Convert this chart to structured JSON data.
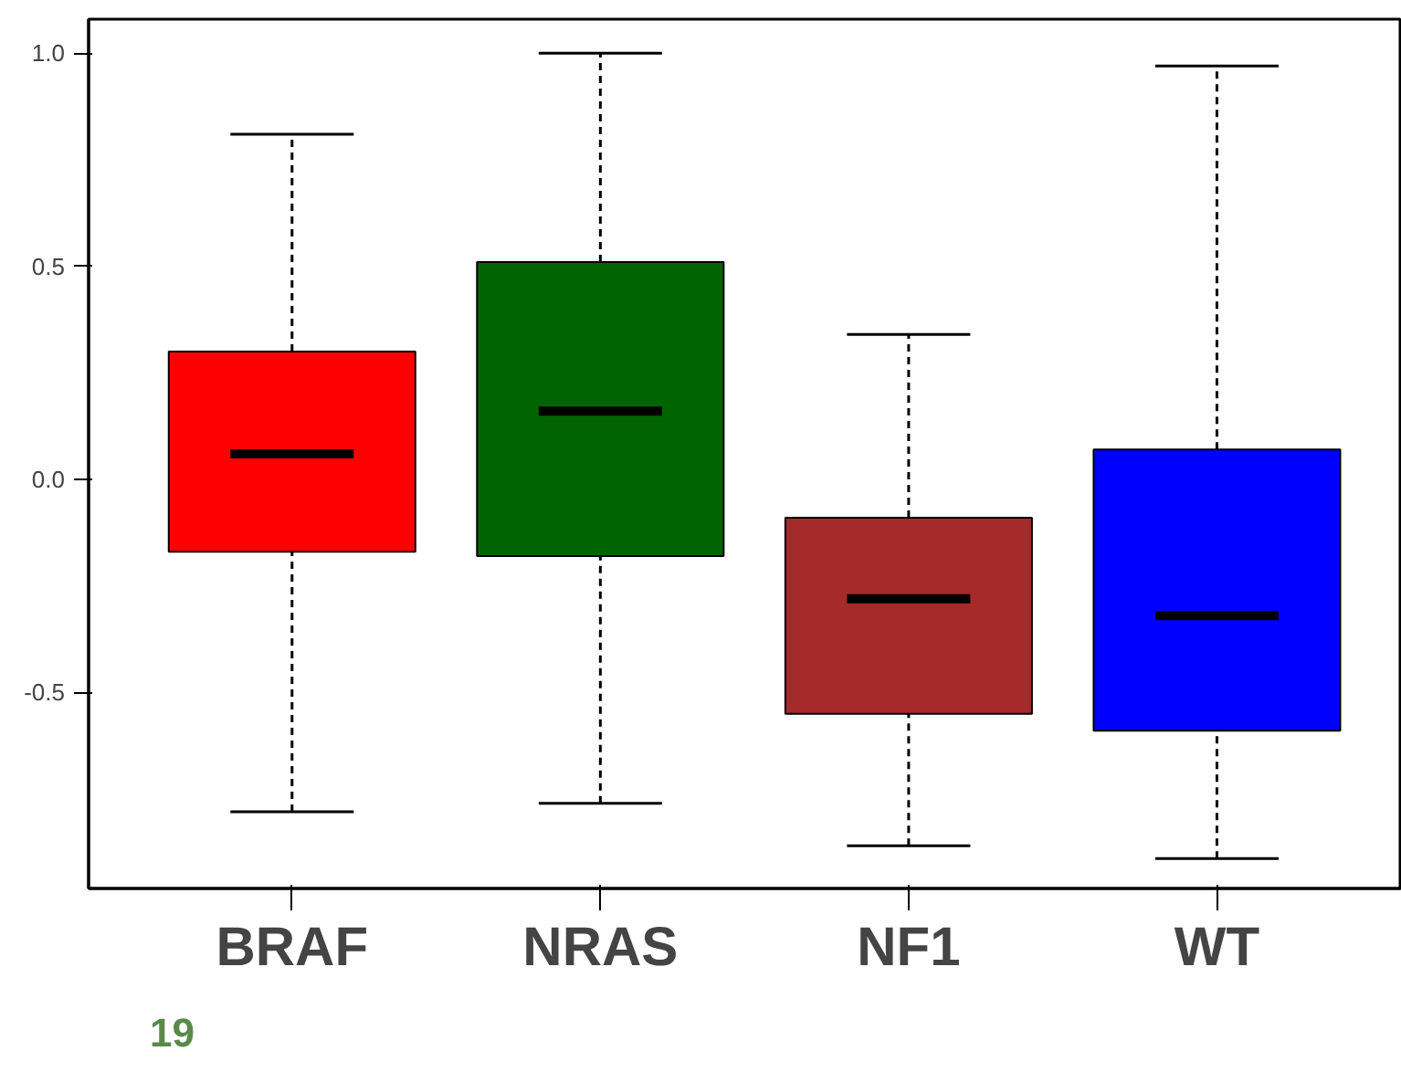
{
  "chart_data": {
    "type": "box",
    "categories": [
      "BRAF",
      "NRAS",
      "NF1",
      "WT"
    ],
    "boxes": [
      {
        "low": -0.78,
        "q1": -0.17,
        "median": 0.06,
        "q3": 0.3,
        "high": 0.81
      },
      {
        "low": -0.76,
        "q1": -0.18,
        "median": 0.16,
        "q3": 0.51,
        "high": 1.0
      },
      {
        "low": -0.86,
        "q1": -0.55,
        "median": -0.28,
        "q3": -0.09,
        "high": 0.34
      },
      {
        "low": -0.89,
        "q1": -0.59,
        "median": -0.32,
        "q3": 0.07,
        "high": 0.97
      }
    ],
    "colors": [
      "#ff0000",
      "#006400",
      "#a52a2a",
      "#0000ff"
    ],
    "ylim": [
      -0.96,
      1.08
    ],
    "yticks": [
      {
        "value": 1.0,
        "label": "1.0"
      },
      0.5,
      {
        "value": 0.0,
        "label": "0.0"
      },
      -0.5
    ],
    "annotations": [
      "19"
    ]
  }
}
